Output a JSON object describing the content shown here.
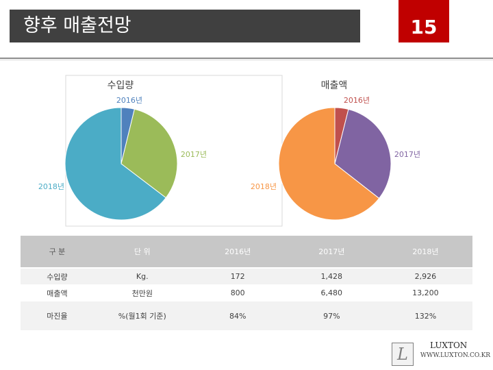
{
  "header": {
    "title": "향후 매출전망",
    "page_number": "15"
  },
  "chart_data": [
    {
      "type": "pie",
      "title": "수입량",
      "labels": [
        "2016년",
        "2017년",
        "2018년"
      ],
      "values": [
        172,
        1428,
        2926
      ],
      "colors": [
        "#4f81bd",
        "#9bbb59",
        "#4bacc6"
      ]
    },
    {
      "type": "pie",
      "title": "매출액",
      "labels": [
        "2016년",
        "2017년",
        "2018년"
      ],
      "values": [
        800,
        6480,
        13200
      ],
      "colors": [
        "#c0504d",
        "#8064a2",
        "#f79646"
      ]
    }
  ],
  "table": {
    "headers": [
      "구 분",
      "단 위",
      "2016년",
      "2017년",
      "2018년"
    ],
    "rows": [
      [
        "수입량",
        "Kg.",
        "172",
        "1,428",
        "2,926"
      ],
      [
        "매출액",
        "천만원",
        "800",
        "6,480",
        "13,200"
      ],
      [
        "마진율",
        "%(월1회 기준)",
        "84%",
        "97%",
        "132%"
      ]
    ]
  },
  "logo": {
    "name": "LUXTON",
    "url": "WWW.LUXTON.CO.KR",
    "glyph": "L"
  }
}
